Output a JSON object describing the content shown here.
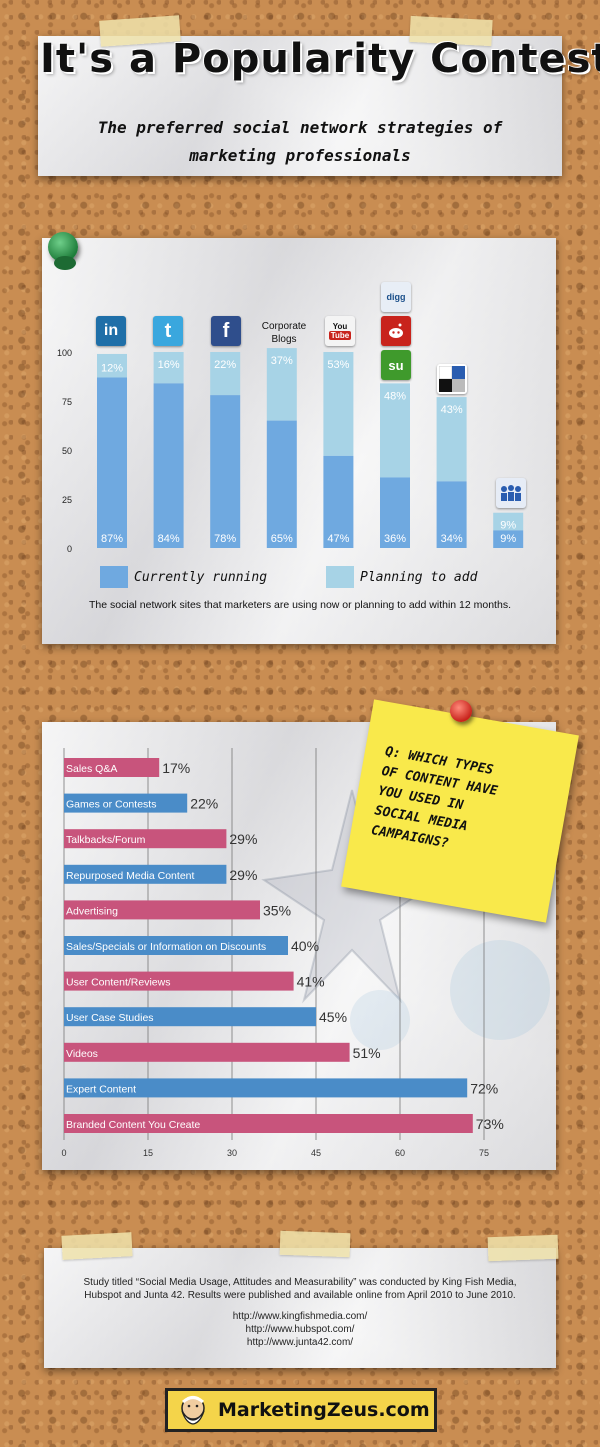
{
  "header": {
    "title": "It's a Popularity Contest",
    "subtitle_line1": "The preferred social network strategies of",
    "subtitle_line2": "marketing professionals"
  },
  "chart_data": [
    {
      "type": "bar",
      "categories": [
        "LinkedIn",
        "Twitter",
        "Facebook",
        "Corporate Blogs",
        "YouTube",
        "Digg / Reddit / StumbleUpon",
        "Delicious",
        "MySpace"
      ],
      "category_text": {
        "corporate_blogs": "Corporate Blogs"
      },
      "icons": [
        "linkedin-icon",
        "twitter-icon",
        "facebook-icon",
        "",
        "youtube-icon",
        "digg-reddit-stumbleupon-icon",
        "delicious-icon",
        "myspace-icon"
      ],
      "icon_text": {
        "linkedin": "in",
        "twitter": "t",
        "facebook": "f",
        "youtube_top": "You",
        "youtube_bottom": "Tube",
        "digg": "digg",
        "stumbleupon": "su"
      },
      "series": [
        {
          "name": "Currently running",
          "values": [
            87,
            84,
            78,
            65,
            47,
            36,
            34,
            9
          ],
          "labels": [
            "87%",
            "84%",
            "78%",
            "65%",
            "47%",
            "36%",
            "34%",
            "9%"
          ],
          "color": "#6fa9e0"
        },
        {
          "name": "Planning to add",
          "values": [
            12,
            16,
            22,
            37,
            53,
            48,
            43,
            9
          ],
          "labels": [
            "12%",
            "16%",
            "22%",
            "37%",
            "53%",
            "48%",
            "43%",
            "9%"
          ],
          "color": "#a7d3e6"
        }
      ],
      "y_ticks": [
        "100",
        "75",
        "50",
        "25",
        "0"
      ],
      "ylim": [
        0,
        100
      ],
      "legend_placement": "bottom",
      "caption": "The social network sites that marketers are using now or planning to add within 12 months."
    },
    {
      "type": "bar",
      "orientation": "horizontal",
      "categories": [
        "Sales Q&A",
        "Games or Contests",
        "Talkbacks/Forum",
        "Repurposed Media Content",
        "Advertising",
        "Sales/Specials or Information on Discounts",
        "User Content/Reviews",
        "User Case Studies",
        "Videos",
        "Expert Content",
        "Branded Content You Create"
      ],
      "values": [
        17,
        22,
        29,
        29,
        35,
        40,
        41,
        45,
        51,
        72,
        73
      ],
      "labels": [
        "17%",
        "22%",
        "29%",
        "29%",
        "35%",
        "40%",
        "41%",
        "45%",
        "51%",
        "72%",
        "73%"
      ],
      "colors": [
        "#c8547c",
        "#4a8cc8",
        "#c8547c",
        "#4a8cc8",
        "#c8547c",
        "#4a8cc8",
        "#c8547c",
        "#4a8cc8",
        "#c8547c",
        "#4a8cc8",
        "#c8547c"
      ],
      "x_ticks": [
        "0",
        "15",
        "30",
        "45",
        "60",
        "75"
      ],
      "xlim": [
        0,
        75
      ],
      "grid": true
    }
  ],
  "note": {
    "line1": "Q: which types",
    "line2": "of content have",
    "line3": "you used in",
    "line4": "social media",
    "line5": "campaigns?"
  },
  "footer": {
    "study_text": "Study titled “Social Media Usage, Attitudes and Measurability” was conducted by King Fish Media, Hubspot and Junta 42. Results were published and available online from April 2010 to June 2010.",
    "urls": [
      "http://www.kingfishmedia.com/",
      "http://www.hubspot.com/",
      "http://www.junta42.com/"
    ]
  },
  "logo": {
    "text": "MarketingZeus.com"
  }
}
